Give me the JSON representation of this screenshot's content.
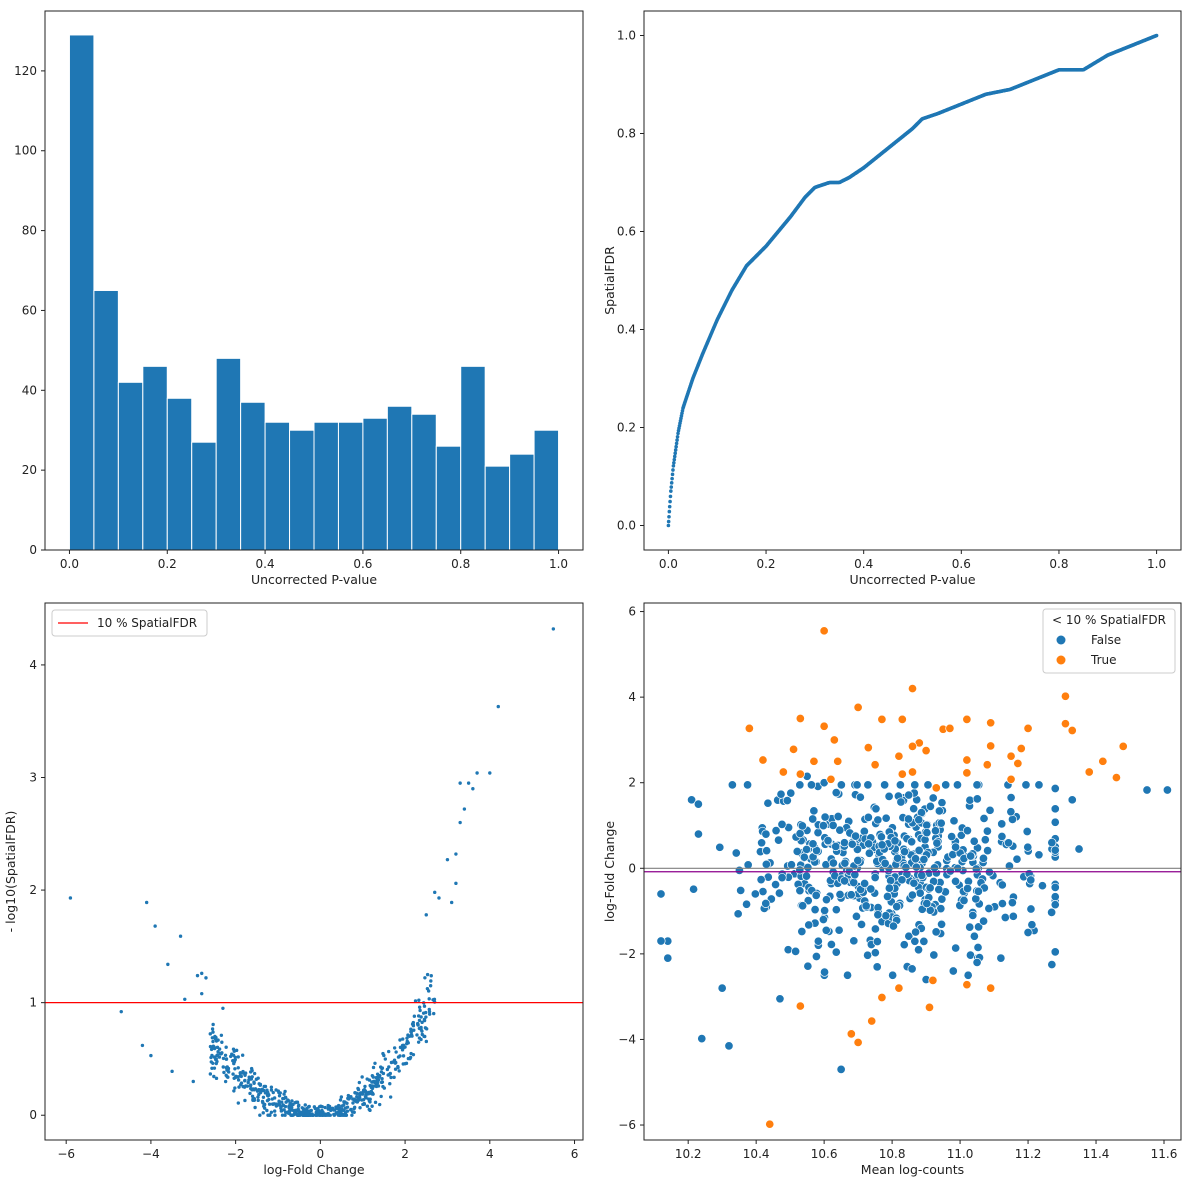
{
  "figure": {
    "title": ""
  },
  "chart_data": [
    {
      "type": "bar",
      "subtype": "histogram",
      "title": "",
      "xlabel": "Uncorrected P-value",
      "ylabel": "",
      "xlim": [
        -0.05,
        1.05
      ],
      "ylim": [
        0,
        135
      ],
      "bin_edges": [
        0.0,
        0.05,
        0.1,
        0.15,
        0.2,
        0.25,
        0.3,
        0.35,
        0.4,
        0.45,
        0.5,
        0.55,
        0.6,
        0.65,
        0.7,
        0.75,
        0.8,
        0.85,
        0.9,
        0.95,
        1.0
      ],
      "values": [
        129,
        65,
        42,
        46,
        38,
        27,
        48,
        37,
        32,
        30,
        32,
        32,
        33,
        36,
        34,
        26,
        46,
        21,
        24,
        30
      ],
      "x_ticks": [
        0.0,
        0.2,
        0.4,
        0.6,
        0.8,
        1.0
      ],
      "x_tick_labels": [
        "0.0",
        "0.2",
        "0.4",
        "0.6",
        "0.8",
        "1.0"
      ],
      "y_ticks": [
        0,
        20,
        40,
        60,
        80,
        100,
        120
      ],
      "y_tick_labels": [
        "0",
        "20",
        "40",
        "60",
        "80",
        "100",
        "120"
      ],
      "color": "#1f77b4",
      "grid": false
    },
    {
      "type": "scatter",
      "title": "",
      "xlabel": "Uncorrected P-value",
      "ylabel": "SpatialFDR",
      "xlim": [
        -0.05,
        1.05
      ],
      "ylim": [
        -0.05,
        1.05
      ],
      "curve_anchor_points": {
        "x": [
          0.0,
          0.002,
          0.005,
          0.01,
          0.02,
          0.03,
          0.05,
          0.07,
          0.1,
          0.13,
          0.16,
          0.2,
          0.25,
          0.28,
          0.3,
          0.33,
          0.35,
          0.37,
          0.4,
          0.45,
          0.5,
          0.52,
          0.55,
          0.6,
          0.65,
          0.7,
          0.75,
          0.8,
          0.85,
          0.9,
          0.95,
          1.0
        ],
        "y": [
          0.0,
          0.03,
          0.07,
          0.12,
          0.19,
          0.24,
          0.3,
          0.35,
          0.42,
          0.48,
          0.53,
          0.57,
          0.63,
          0.67,
          0.69,
          0.7,
          0.7,
          0.71,
          0.73,
          0.77,
          0.81,
          0.83,
          0.84,
          0.86,
          0.88,
          0.89,
          0.91,
          0.93,
          0.93,
          0.96,
          0.98,
          1.0
        ]
      },
      "n_points": 700,
      "x_ticks": [
        0.0,
        0.2,
        0.4,
        0.6,
        0.8,
        1.0
      ],
      "x_tick_labels": [
        "0.0",
        "0.2",
        "0.4",
        "0.6",
        "0.8",
        "1.0"
      ],
      "y_ticks": [
        0.0,
        0.2,
        0.4,
        0.6,
        0.8,
        1.0
      ],
      "y_tick_labels": [
        "0.0",
        "0.2",
        "0.4",
        "0.6",
        "0.8",
        "1.0"
      ],
      "color": "#1f77b4",
      "grid": false
    },
    {
      "type": "scatter",
      "subtype": "volcano",
      "title": "",
      "xlabel": "log-Fold Change",
      "ylabel": "- log10(SpatialFDR)",
      "xlim": [
        -6.5,
        6.2
      ],
      "ylim": [
        -0.22,
        4.55
      ],
      "outlier_points": [
        {
          "x": -5.9,
          "y": 1.93
        },
        {
          "x": -4.7,
          "y": 0.92
        },
        {
          "x": -4.1,
          "y": 1.89
        },
        {
          "x": -3.9,
          "y": 1.68
        },
        {
          "x": -3.6,
          "y": 1.34
        },
        {
          "x": -3.3,
          "y": 1.59
        },
        {
          "x": -3.2,
          "y": 1.03
        },
        {
          "x": -3.0,
          "y": 0.3
        },
        {
          "x": -4.2,
          "y": 0.62
        },
        {
          "x": -4.0,
          "y": 0.53
        },
        {
          "x": -3.5,
          "y": 0.39
        },
        {
          "x": -2.9,
          "y": 1.24
        },
        {
          "x": -2.8,
          "y": 1.26
        },
        {
          "x": -2.7,
          "y": 1.22
        },
        {
          "x": -2.8,
          "y": 1.08
        },
        {
          "x": -2.3,
          "y": 0.95
        },
        {
          "x": 5.5,
          "y": 4.32
        },
        {
          "x": 4.2,
          "y": 3.63
        },
        {
          "x": 4.0,
          "y": 3.04
        },
        {
          "x": 3.7,
          "y": 3.04
        },
        {
          "x": 3.3,
          "y": 2.95
        },
        {
          "x": 3.5,
          "y": 2.95
        },
        {
          "x": 3.6,
          "y": 2.9
        },
        {
          "x": 3.4,
          "y": 2.72
        },
        {
          "x": 3.3,
          "y": 2.6
        },
        {
          "x": 3.2,
          "y": 2.32
        },
        {
          "x": 3.0,
          "y": 2.27
        },
        {
          "x": 3.2,
          "y": 2.06
        },
        {
          "x": 2.7,
          "y": 1.98
        },
        {
          "x": 2.8,
          "y": 1.93
        },
        {
          "x": 3.1,
          "y": 1.89
        },
        {
          "x": 2.5,
          "y": 1.78
        }
      ],
      "cloud": {
        "n_points": 620,
        "x_range": [
          -2.6,
          2.7
        ],
        "shape": "parabola"
      },
      "threshold": {
        "y": 1.0,
        "label": "10 % SpatialFDR",
        "color": "#ff0000"
      },
      "legend": {
        "entries": [
          "10 % SpatialFDR"
        ],
        "placement": "top-left"
      },
      "x_ticks": [
        -6,
        -4,
        -2,
        0,
        2,
        4,
        6
      ],
      "x_tick_labels": [
        "−6",
        "−4",
        "−2",
        "0",
        "2",
        "4",
        "6"
      ],
      "y_ticks": [
        0,
        1,
        2,
        3,
        4
      ],
      "y_tick_labels": [
        "0",
        "1",
        "2",
        "3",
        "4"
      ],
      "color": "#1f77b4",
      "grid": false
    },
    {
      "type": "scatter",
      "subtype": "ma-plot",
      "title": "",
      "xlabel": "Mean log-counts",
      "ylabel": "log-Fold Change",
      "xlim": [
        10.07,
        11.65
      ],
      "ylim": [
        -6.35,
        6.2
      ],
      "series": [
        {
          "name": "False",
          "color": "#1f77b4",
          "points": [
            {
              "x": 11.61,
              "y": 1.83
            },
            {
              "x": 11.55,
              "y": 1.83
            },
            {
              "x": 11.33,
              "y": 1.6
            },
            {
              "x": 11.35,
              "y": 0.45
            },
            {
              "x": 11.27,
              "y": 0.6
            },
            {
              "x": 11.27,
              "y": -2.25
            },
            {
              "x": 11.12,
              "y": -2.1
            },
            {
              "x": 11.2,
              "y": -1.5
            },
            {
              "x": 10.65,
              "y": -4.7
            },
            {
              "x": 10.32,
              "y": -4.15
            },
            {
              "x": 10.24,
              "y": -3.98
            },
            {
              "x": 10.47,
              "y": -3.05
            },
            {
              "x": 10.3,
              "y": -2.8
            },
            {
              "x": 10.12,
              "y": -1.7
            },
            {
              "x": 10.14,
              "y": -2.1
            },
            {
              "x": 10.12,
              "y": -0.6
            },
            {
              "x": 10.21,
              "y": 1.6
            },
            {
              "x": 10.23,
              "y": 1.5
            },
            {
              "x": 10.33,
              "y": 1.95
            },
            {
              "x": 10.55,
              "y": 2.15
            },
            {
              "x": 10.6,
              "y": 2.0
            },
            {
              "x": 10.9,
              "y": -2.6
            },
            {
              "x": 10.98,
              "y": -2.4
            },
            {
              "x": 11.05,
              "y": -2.2
            }
          ],
          "cloud": {
            "n_points": 560,
            "center_x": 10.8,
            "spread_x": 0.22,
            "spread_y": 1.0
          }
        },
        {
          "name": "True",
          "color": "#ff7f0e",
          "points": [
            {
              "x": 10.6,
              "y": 5.55
            },
            {
              "x": 10.86,
              "y": 4.2
            },
            {
              "x": 11.31,
              "y": 4.02
            },
            {
              "x": 10.7,
              "y": 3.76
            },
            {
              "x": 10.53,
              "y": 3.5
            },
            {
              "x": 10.77,
              "y": 3.48
            },
            {
              "x": 10.83,
              "y": 3.48
            },
            {
              "x": 11.02,
              "y": 3.48
            },
            {
              "x": 11.09,
              "y": 3.4
            },
            {
              "x": 11.31,
              "y": 3.38
            },
            {
              "x": 10.6,
              "y": 3.32
            },
            {
              "x": 10.38,
              "y": 3.27
            },
            {
              "x": 10.95,
              "y": 3.25
            },
            {
              "x": 10.97,
              "y": 3.27
            },
            {
              "x": 11.2,
              "y": 3.27
            },
            {
              "x": 11.33,
              "y": 3.22
            },
            {
              "x": 10.63,
              "y": 3.0
            },
            {
              "x": 10.88,
              "y": 2.93
            },
            {
              "x": 11.48,
              "y": 2.85
            },
            {
              "x": 10.73,
              "y": 2.82
            },
            {
              "x": 10.86,
              "y": 2.85
            },
            {
              "x": 11.09,
              "y": 2.86
            },
            {
              "x": 11.18,
              "y": 2.8
            },
            {
              "x": 10.51,
              "y": 2.78
            },
            {
              "x": 10.9,
              "y": 2.75
            },
            {
              "x": 11.15,
              "y": 2.62
            },
            {
              "x": 10.82,
              "y": 2.62
            },
            {
              "x": 10.42,
              "y": 2.53
            },
            {
              "x": 11.02,
              "y": 2.53
            },
            {
              "x": 11.42,
              "y": 2.5
            },
            {
              "x": 10.57,
              "y": 2.5
            },
            {
              "x": 10.64,
              "y": 2.5
            },
            {
              "x": 10.75,
              "y": 2.42
            },
            {
              "x": 11.08,
              "y": 2.42
            },
            {
              "x": 11.17,
              "y": 2.45
            },
            {
              "x": 11.38,
              "y": 2.25
            },
            {
              "x": 10.86,
              "y": 2.25
            },
            {
              "x": 10.53,
              "y": 2.2
            },
            {
              "x": 10.83,
              "y": 2.2
            },
            {
              "x": 11.02,
              "y": 2.23
            },
            {
              "x": 11.46,
              "y": 2.12
            },
            {
              "x": 11.15,
              "y": 2.08
            },
            {
              "x": 10.48,
              "y": 2.25
            },
            {
              "x": 10.62,
              "y": 2.08
            },
            {
              "x": 10.93,
              "y": 1.88
            },
            {
              "x": 10.53,
              "y": -3.22
            },
            {
              "x": 10.77,
              "y": -3.02
            },
            {
              "x": 10.74,
              "y": -3.57
            },
            {
              "x": 10.68,
              "y": -3.87
            },
            {
              "x": 10.7,
              "y": -4.07
            },
            {
              "x": 10.44,
              "y": -5.98
            },
            {
              "x": 10.91,
              "y": -3.25
            },
            {
              "x": 11.09,
              "y": -2.8
            },
            {
              "x": 10.82,
              "y": -2.8
            },
            {
              "x": 11.02,
              "y": -2.72
            },
            {
              "x": 10.92,
              "y": -2.62
            }
          ]
        }
      ],
      "reference_lines": [
        {
          "y": 0.0,
          "color": "#808080"
        },
        {
          "y": -0.08,
          "color": "#8b008b"
        }
      ],
      "legend": {
        "title": "< 10 % SpatialFDR",
        "entries": [
          "False",
          "True"
        ],
        "placement": "top-right"
      },
      "x_ticks": [
        10.2,
        10.4,
        10.6,
        10.8,
        11.0,
        11.2,
        11.4,
        11.6
      ],
      "x_tick_labels": [
        "10.2",
        "10.4",
        "10.6",
        "10.8",
        "11.0",
        "11.2",
        "11.4",
        "11.6"
      ],
      "y_ticks": [
        -6,
        -4,
        -2,
        0,
        2,
        4,
        6
      ],
      "y_tick_labels": [
        "−6",
        "−4",
        "−2",
        "0",
        "2",
        "4",
        "6"
      ],
      "grid": false
    }
  ]
}
